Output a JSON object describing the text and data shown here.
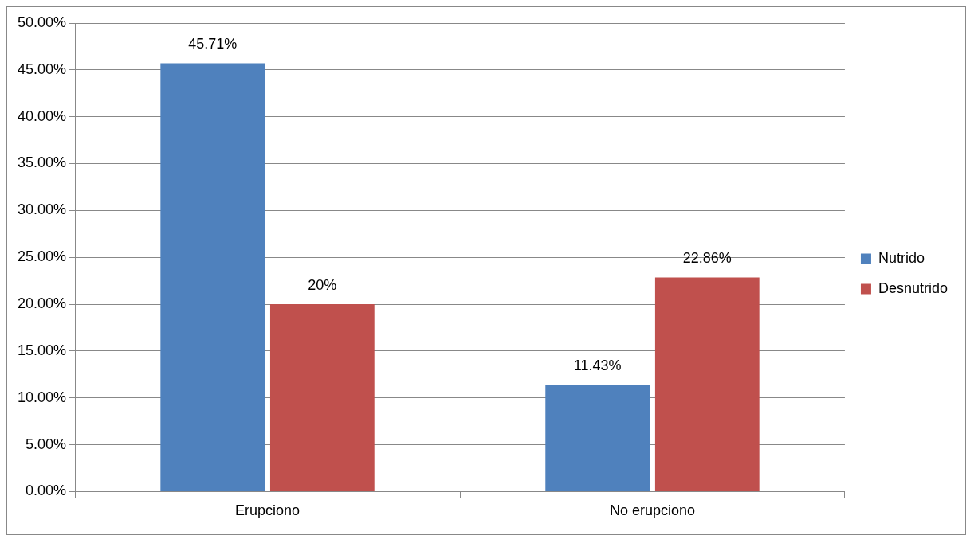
{
  "chart_data": {
    "type": "bar",
    "categories": [
      "Erupciono",
      "No erupciono"
    ],
    "series": [
      {
        "name": "Nutrido",
        "color": "#4f81bd",
        "values": [
          45.71,
          11.43
        ],
        "value_labels": [
          "45.71%",
          "11.43%"
        ]
      },
      {
        "name": "Desnutrido",
        "color": "#c0504d",
        "values": [
          20,
          22.86
        ],
        "value_labels": [
          "20%",
          "22.86%"
        ]
      }
    ],
    "ylim": [
      0,
      50
    ],
    "yticks": [
      {
        "value": 0,
        "label": "0.00%"
      },
      {
        "value": 5,
        "label": "5.00%"
      },
      {
        "value": 10,
        "label": "10.00%"
      },
      {
        "value": 15,
        "label": "15.00%"
      },
      {
        "value": 20,
        "label": "20.00%"
      },
      {
        "value": 25,
        "label": "25.00%"
      },
      {
        "value": 30,
        "label": "30.00%"
      },
      {
        "value": 35,
        "label": "35.00%"
      },
      {
        "value": 40,
        "label": "40.00%"
      },
      {
        "value": 45,
        "label": "45.00%"
      },
      {
        "value": 50,
        "label": "50.00%"
      }
    ],
    "grid": "y",
    "legend": "right"
  }
}
